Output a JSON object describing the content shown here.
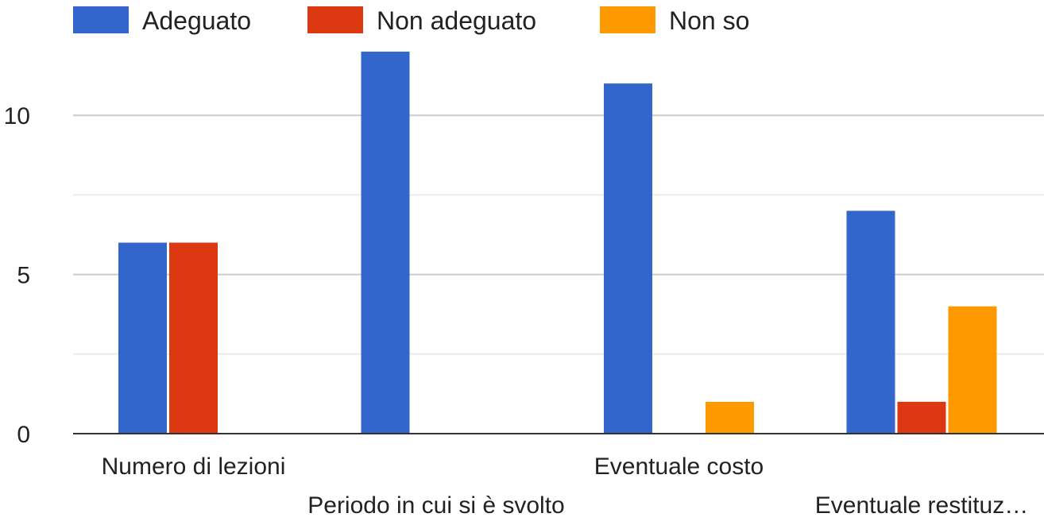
{
  "chart_data": {
    "type": "bar",
    "categories": [
      "Numero di lezioni",
      "Periodo in cui si è svolto",
      "Eventuale costo",
      "Eventuale restituz…"
    ],
    "series": [
      {
        "name": "Adeguato",
        "color": "#3366cc",
        "values": [
          6,
          12,
          11,
          7
        ]
      },
      {
        "name": "Non adeguato",
        "color": "#dc3912",
        "values": [
          6,
          0,
          0,
          1
        ]
      },
      {
        "name": "Non so",
        "color": "#ff9900",
        "values": [
          0,
          0,
          1,
          4
        ]
      }
    ],
    "yticks": [
      0,
      5,
      10
    ],
    "ylim": [
      0,
      12.5
    ],
    "grid": true,
    "legend": "top-left"
  }
}
